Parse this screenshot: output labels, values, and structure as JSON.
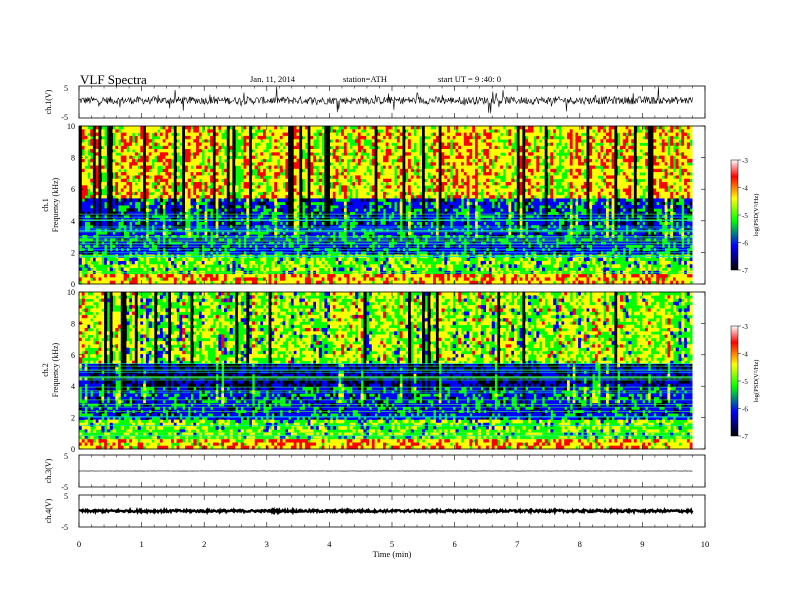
{
  "header": {
    "title": "VLF  Spectra",
    "date": "Jan. 11, 2014",
    "station": "station=ATH",
    "start": "start  UT  =   9 :40: 0"
  },
  "panels": {
    "ch1_wave": {
      "label": "ch.1(V)",
      "y_max": "5",
      "y_min": "-5"
    },
    "ch1_spec": {
      "label_line1": "ch.1",
      "label_line2": "Frequency (kHz)"
    },
    "ch2_spec": {
      "label_line1": "ch.2",
      "label_line2": "Frequency (kHz)"
    },
    "ch3_wave": {
      "label": "ch.3(V)",
      "y_max": "5",
      "y_min": "-5"
    },
    "ch4_wave": {
      "label": "ch.4(V)",
      "y_max": "5",
      "y_min": "-5"
    }
  },
  "colorbar": {
    "label": "log(PSD(V²/Hz)",
    "ticks": [
      "-3",
      "-4",
      "-5",
      "-6",
      "-7"
    ]
  },
  "colors": {
    "spec_low": "#000000",
    "spec_mid_low": "#0000ff",
    "spec_mid": "#00ff00",
    "spec_mid_high": "#ffff00",
    "spec_high": "#ff0000",
    "spec_top": "#ffffff"
  },
  "chart_data": [
    {
      "type": "line",
      "name": "ch.1(V)",
      "xlabel": "Time  (min)",
      "ylabel": "ch.1(V)",
      "xlim": [
        0,
        10
      ],
      "ylim": [
        -5,
        5
      ],
      "x_ticks": [
        "0",
        "1",
        "2",
        "3",
        "4",
        "5",
        "6",
        "7",
        "8",
        "9",
        "10"
      ],
      "data_end_min": 9.8,
      "mean_level": 0.5,
      "noise_amplitude": 1.2
    },
    {
      "type": "heatmap",
      "name": "ch.1 spectrogram",
      "ylabel": "Frequency (kHz)",
      "xlim": [
        0,
        10
      ],
      "ylim": [
        0,
        10
      ],
      "y_ticks": [
        "0",
        "2",
        "4",
        "6",
        "8",
        "10"
      ],
      "color_range": [
        -7,
        -3
      ],
      "data_end_min": 9.8
    },
    {
      "type": "heatmap",
      "name": "ch.2 spectrogram",
      "ylabel": "Frequency (kHz)",
      "xlim": [
        0,
        10
      ],
      "ylim": [
        0,
        10
      ],
      "y_ticks": [
        "0",
        "2",
        "4",
        "6",
        "8",
        "10"
      ],
      "color_range": [
        -7,
        -3
      ],
      "data_end_min": 9.8
    },
    {
      "type": "line",
      "name": "ch.3(V)",
      "ylabel": "ch.3(V)",
      "xlim": [
        0,
        10
      ],
      "ylim": [
        -5,
        5
      ],
      "data_end_min": 9.8,
      "mean_level": 0.0,
      "noise_amplitude": 0.05
    },
    {
      "type": "line",
      "name": "ch.4(V)",
      "ylabel": "ch.4(V)",
      "xlim": [
        0,
        10
      ],
      "ylim": [
        -5,
        5
      ],
      "data_end_min": 9.8,
      "mean_level": 0.0,
      "noise_amplitude": 0.35
    }
  ]
}
